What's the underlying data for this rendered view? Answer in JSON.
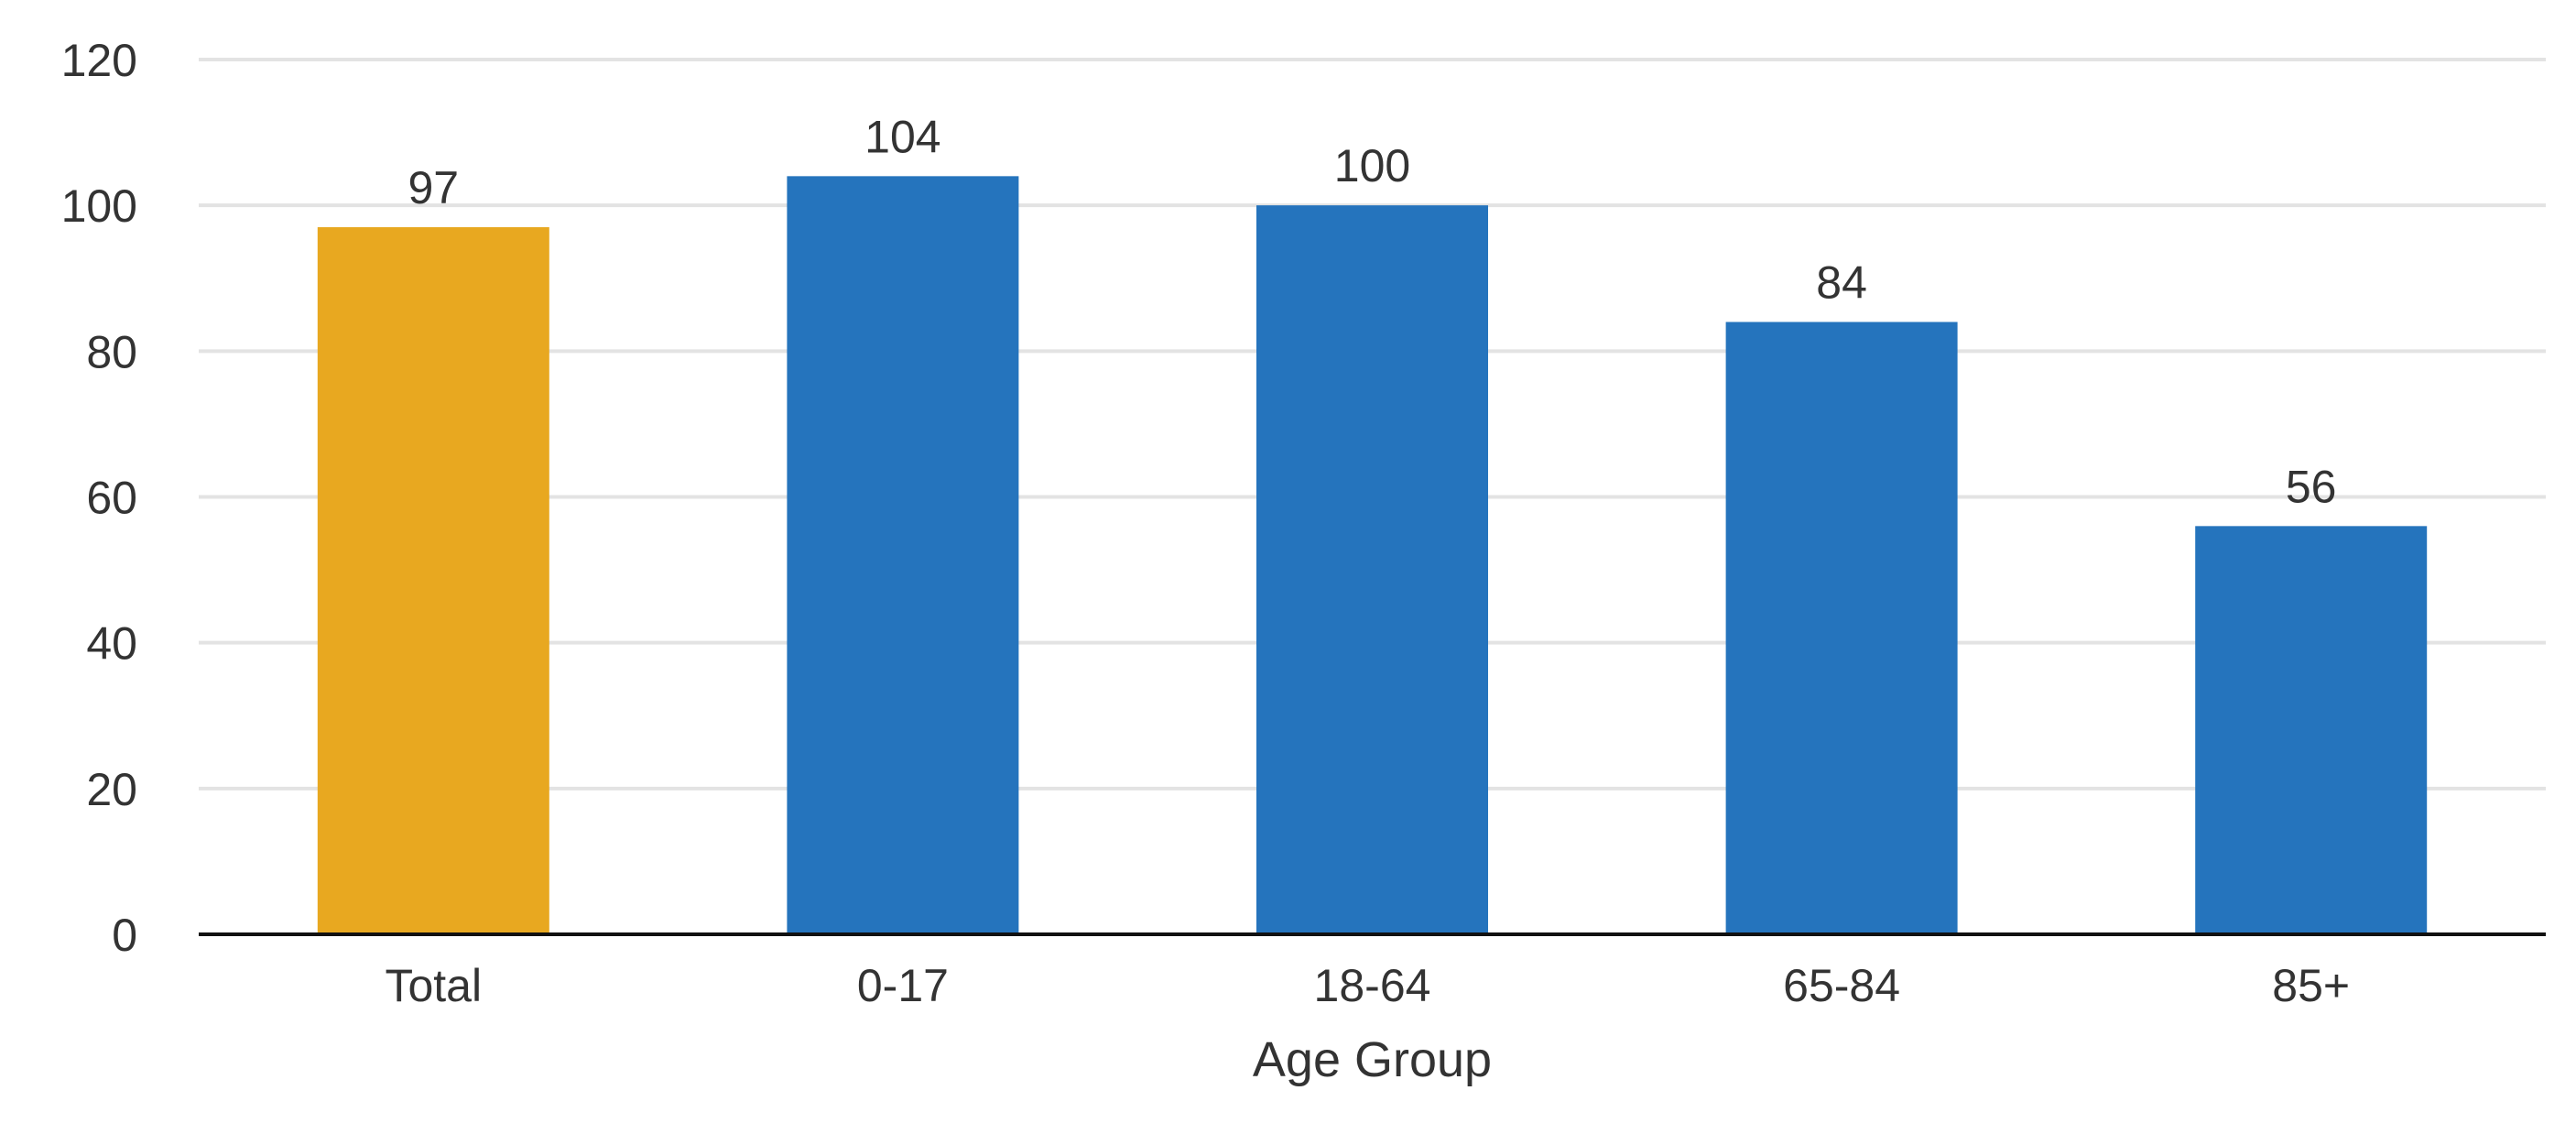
{
  "chart_data": {
    "type": "bar",
    "title": "",
    "xlabel": "Age Group",
    "ylabel": "",
    "categories": [
      "Total",
      "0-17",
      "18-64",
      "65-84",
      "85+"
    ],
    "values": [
      97,
      104,
      100,
      84,
      56
    ],
    "data_labels": [
      "97",
      "104",
      "100",
      "84",
      "56"
    ],
    "bar_colors": [
      "#e8a820",
      "#2574bd",
      "#2574bd",
      "#2574bd",
      "#2574bd"
    ],
    "ylim": [
      0,
      120
    ],
    "yticks": [
      0,
      20,
      40,
      60,
      80,
      100,
      120
    ],
    "grid": true
  }
}
